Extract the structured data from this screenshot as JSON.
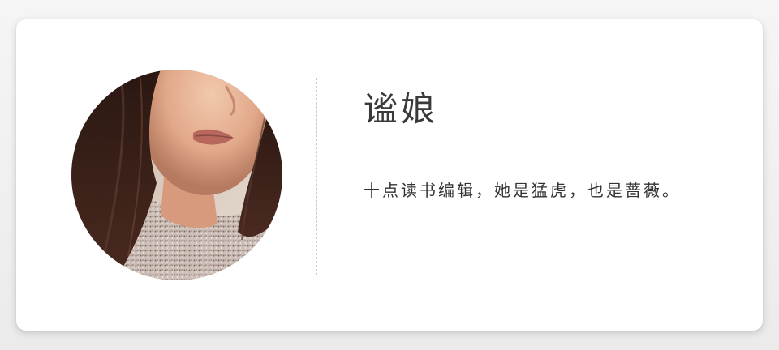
{
  "profile": {
    "name": "谧娘",
    "bio": "十点读书编辑，她是猛虎，也是蔷薇。",
    "avatar_alt": "portrait-photo"
  },
  "colors": {
    "card_background": "#ffffff",
    "page_background": "#f1f0f0",
    "text_primary": "#3a3a3a",
    "divider": "#c9c9c9"
  }
}
